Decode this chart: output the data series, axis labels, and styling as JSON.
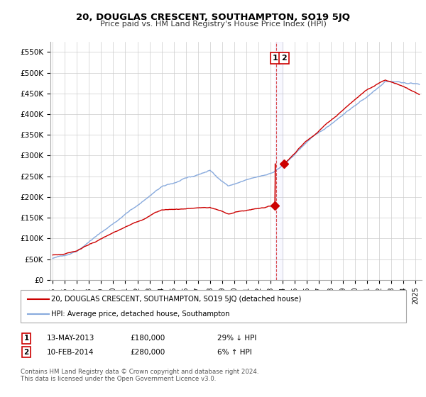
{
  "title": "20, DOUGLAS CRESCENT, SOUTHAMPTON, SO19 5JQ",
  "subtitle": "Price paid vs. HM Land Registry's House Price Index (HPI)",
  "ylabel_ticks": [
    "£0",
    "£50K",
    "£100K",
    "£150K",
    "£200K",
    "£250K",
    "£300K",
    "£350K",
    "£400K",
    "£450K",
    "£500K",
    "£550K"
  ],
  "ytick_values": [
    0,
    50000,
    100000,
    150000,
    200000,
    250000,
    300000,
    350000,
    400000,
    450000,
    500000,
    550000
  ],
  "ylim": [
    0,
    575000
  ],
  "xlim_start": 1994.8,
  "xlim_end": 2025.5,
  "xtick_years": [
    1995,
    1996,
    1997,
    1998,
    1999,
    2000,
    2001,
    2002,
    2003,
    2004,
    2005,
    2006,
    2007,
    2008,
    2009,
    2010,
    2011,
    2012,
    2013,
    2014,
    2015,
    2016,
    2017,
    2018,
    2019,
    2020,
    2021,
    2022,
    2023,
    2024,
    2025
  ],
  "transaction1_x": 2013.37,
  "transaction1_y": 180000,
  "transaction2_x": 2014.12,
  "transaction2_y": 280000,
  "vline_x": 2013.5,
  "sale_color": "#cc0000",
  "hpi_color": "#88aadd",
  "background_color": "#ffffff",
  "grid_color": "#cccccc",
  "legend_sale_label": "20, DOUGLAS CRESCENT, SOUTHAMPTON, SO19 5JQ (detached house)",
  "legend_hpi_label": "HPI: Average price, detached house, Southampton",
  "table_row1": [
    "1",
    "13-MAY-2013",
    "£180,000",
    "29% ↓ HPI"
  ],
  "table_row2": [
    "2",
    "10-FEB-2014",
    "£280,000",
    "6% ↑ HPI"
  ],
  "footnote": "Contains HM Land Registry data © Crown copyright and database right 2024.\nThis data is licensed under the Open Government Licence v3.0."
}
